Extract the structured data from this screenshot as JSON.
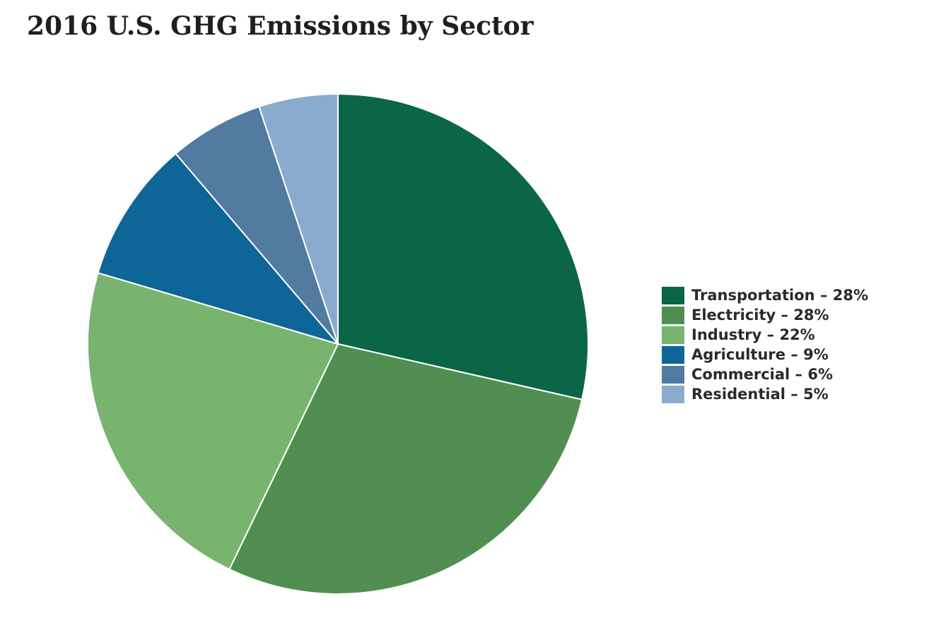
{
  "chart_data": {
    "type": "pie",
    "title": "2016 U.S. GHG Emissions by Sector",
    "legend_position": "right",
    "slices": [
      {
        "label": "Transportation – 28%",
        "category": "Transportation",
        "value": 28,
        "color": "#0b6647"
      },
      {
        "label": "Electricity – 28%",
        "category": "Electricity",
        "value": 28,
        "color": "#508f51"
      },
      {
        "label": "Industry – 22%",
        "category": "Industry",
        "value": 22,
        "color": "#78b46e"
      },
      {
        "label": "Agriculture – 9%",
        "category": "Agriculture",
        "value": 9,
        "color": "#0e6597"
      },
      {
        "label": "Commercial – 6%",
        "category": "Commercial",
        "value": 6,
        "color": "#517ba1"
      },
      {
        "label": "Residential – 5%",
        "category": "Residential",
        "value": 5,
        "color": "#8aabcd"
      }
    ]
  }
}
